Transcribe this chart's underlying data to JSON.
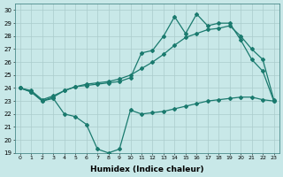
{
  "xlabel": "Humidex (Indice chaleur)",
  "bg_color": "#c8e8e8",
  "grid_color": "#aacccc",
  "line_color": "#1a7a6e",
  "xlim": [
    -0.5,
    23.5
  ],
  "ylim": [
    19,
    30.5
  ],
  "xticks": [
    0,
    1,
    2,
    3,
    4,
    5,
    6,
    7,
    8,
    9,
    10,
    11,
    12,
    13,
    14,
    15,
    16,
    17,
    18,
    19,
    20,
    21,
    22,
    23
  ],
  "yticks": [
    19,
    20,
    21,
    22,
    23,
    24,
    25,
    26,
    27,
    28,
    29,
    30
  ],
  "line1": [
    24.0,
    23.7,
    23.0,
    23.2,
    22.0,
    21.8,
    21.2,
    19.3,
    19.0,
    19.3,
    22.3,
    22.0,
    22.1,
    22.2,
    22.4,
    22.6,
    22.8,
    23.0,
    23.1,
    23.2,
    23.3,
    23.3,
    23.1,
    23.0
  ],
  "line2": [
    24.0,
    23.7,
    23.0,
    23.3,
    23.8,
    24.1,
    24.2,
    24.3,
    24.4,
    24.5,
    24.8,
    26.7,
    26.9,
    28.0,
    29.5,
    28.2,
    29.7,
    28.8,
    29.0,
    29.0,
    27.7,
    26.2,
    25.3,
    23.0
  ],
  "line3": [
    24.0,
    23.8,
    23.1,
    23.4,
    23.8,
    24.1,
    24.3,
    24.4,
    24.5,
    24.7,
    25.0,
    25.5,
    26.0,
    26.6,
    27.3,
    27.9,
    28.2,
    28.5,
    28.6,
    28.8,
    28.0,
    27.0,
    26.2,
    23.1
  ]
}
